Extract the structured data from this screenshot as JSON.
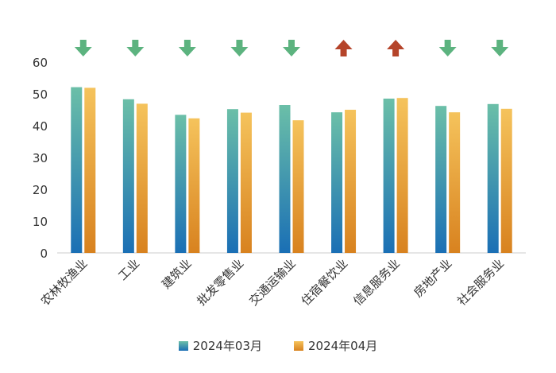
{
  "chart_data": {
    "type": "bar",
    "categories": [
      "农林牧渔业",
      "工业",
      "建筑业",
      "批发零售业",
      "交通运输业",
      "住宿餐饮业",
      "信息服务业",
      "房地产业",
      "社会服务业"
    ],
    "series": [
      {
        "name": "2024年03月",
        "values": [
          52.1,
          48.3,
          43.4,
          45.2,
          46.5,
          44.2,
          48.5,
          46.2,
          46.8
        ]
      },
      {
        "name": "2024年04月",
        "values": [
          51.9,
          46.9,
          42.3,
          44.1,
          41.7,
          45.0,
          48.7,
          44.2,
          45.3
        ]
      }
    ],
    "trend": [
      "down",
      "down",
      "down",
      "down",
      "down",
      "up",
      "up",
      "down",
      "down"
    ],
    "ylim": [
      0,
      60
    ],
    "yticks": [
      0,
      10,
      20,
      30,
      40,
      50,
      60
    ],
    "legend_position": "bottom",
    "grid": false,
    "colors": {
      "series1_top": "#6bbfa8",
      "series1_bottom": "#1a6fb5",
      "series2_top": "#f5c35c",
      "series2_bottom": "#d8821f",
      "arrow_down": "#5cb37f",
      "arrow_up": "#b5442a",
      "axis": "#cccccc"
    }
  }
}
